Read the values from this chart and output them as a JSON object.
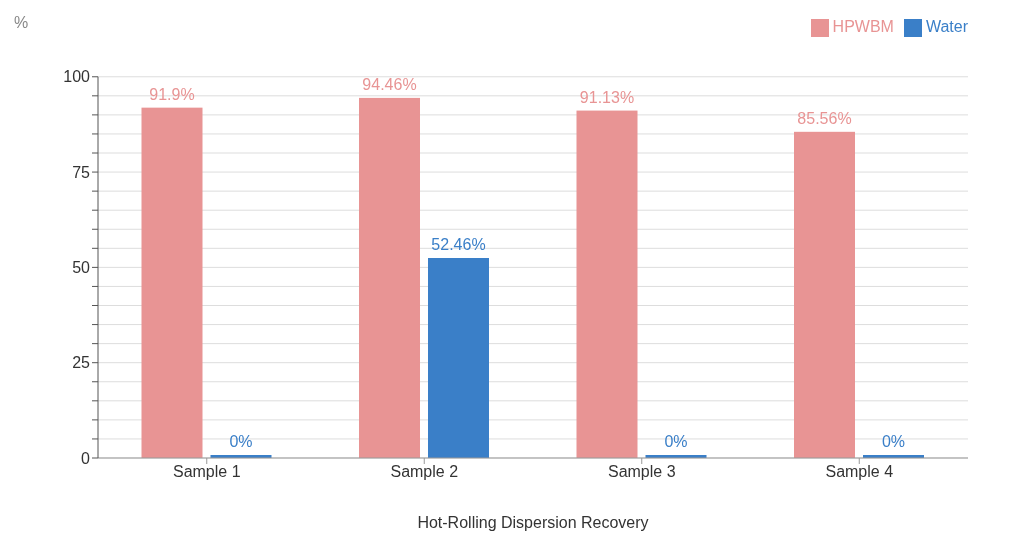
{
  "chart_data": {
    "type": "bar",
    "ylabel": "%",
    "xlabel": "Hot-Rolling Dispersion Recovery",
    "categories": [
      "Sample 1",
      "Sample 2",
      "Sample 3",
      "Sample 4"
    ],
    "series": [
      {
        "name": "HPWBM",
        "color": "#e89494",
        "values": [
          91.9,
          94.46,
          91.13,
          85.56
        ],
        "value_labels": [
          "91.9%",
          "94.46%",
          "91.13%",
          "85.56%"
        ]
      },
      {
        "name": "Water",
        "color": "#3a7fc8",
        "values": [
          0,
          52.46,
          0,
          0
        ],
        "value_labels": [
          "0%",
          "52.46%",
          "0%",
          "0%"
        ]
      }
    ],
    "ylim": [
      0,
      100
    ],
    "yticks": [
      0,
      {
        "value": 5,
        "label": null
      },
      {
        "value": 10,
        "label": null
      },
      {
        "value": 15,
        "label": null
      },
      {
        "value": 20,
        "label": null
      },
      25,
      {
        "value": 30,
        "label": null
      },
      {
        "value": 35,
        "label": null
      },
      {
        "value": 40,
        "label": null
      },
      {
        "value": 45,
        "label": null
      },
      50,
      {
        "value": 55,
        "label": null
      },
      {
        "value": 60,
        "label": null
      },
      {
        "value": 65,
        "label": null
      },
      {
        "value": 70,
        "label": null
      },
      75,
      {
        "value": 80,
        "label": null
      },
      {
        "value": 85,
        "label": null
      },
      {
        "value": 90,
        "label": null
      },
      {
        "value": 95,
        "label": null
      },
      100
    ],
    "grid": "y",
    "legend": "top right"
  }
}
